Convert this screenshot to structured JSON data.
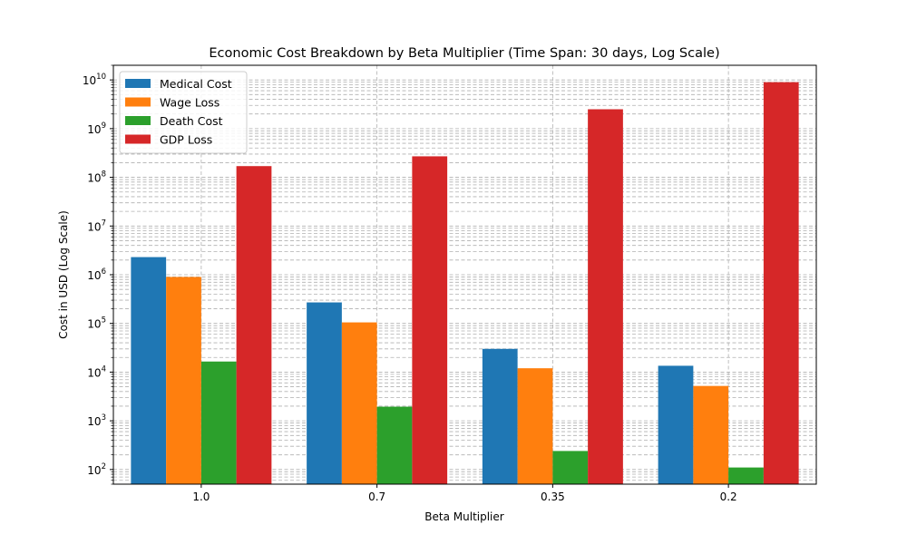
{
  "chart_data": {
    "type": "bar",
    "title": "Economic Cost Breakdown by Beta Multiplier (Time Span: 30 days, Log Scale)",
    "xlabel": "Beta Multiplier",
    "ylabel": "Cost in USD (Log Scale)",
    "categories": [
      "1.0",
      "0.7",
      "0.35",
      "0.2"
    ],
    "yscale": "log",
    "ylim": [
      50,
      20000000000
    ],
    "grid": true,
    "legend_position": "top-left",
    "series": [
      {
        "name": "Medical Cost",
        "color": "#1f77b4",
        "values": [
          2300000,
          270000,
          30000,
          13500
        ]
      },
      {
        "name": "Wage Loss",
        "color": "#ff7f0e",
        "values": [
          900000,
          105000,
          12000,
          5200
        ]
      },
      {
        "name": "Death Cost",
        "color": "#2ca02c",
        "values": [
          16500,
          1950,
          240,
          110
        ]
      },
      {
        "name": "GDP Loss",
        "color": "#d62728",
        "values": [
          170000000,
          270000000,
          2500000000,
          9000000000
        ]
      }
    ],
    "ytick_labels": [
      {
        "base": "10",
        "exp": "2"
      },
      {
        "base": "10",
        "exp": "3"
      },
      {
        "base": "10",
        "exp": "4"
      },
      {
        "base": "10",
        "exp": "5"
      },
      {
        "base": "10",
        "exp": "6"
      },
      {
        "base": "10",
        "exp": "7"
      },
      {
        "base": "10",
        "exp": "8"
      },
      {
        "base": "10",
        "exp": "9"
      },
      {
        "base": "10",
        "exp": "10"
      }
    ]
  }
}
